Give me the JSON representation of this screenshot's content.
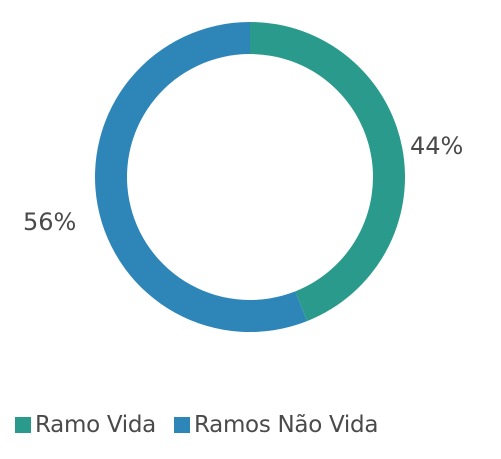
{
  "chart_data": {
    "type": "pie",
    "donut": true,
    "categories": [
      "Ramo Vida",
      "Ramos Não Vida"
    ],
    "values": [
      44,
      56
    ],
    "labels": [
      "44%",
      "56%"
    ],
    "colors": [
      "#2a9a8c",
      "#2e86b8"
    ],
    "legend_position": "bottom-left",
    "start_angle_deg": 0,
    "direction": "clockwise"
  }
}
